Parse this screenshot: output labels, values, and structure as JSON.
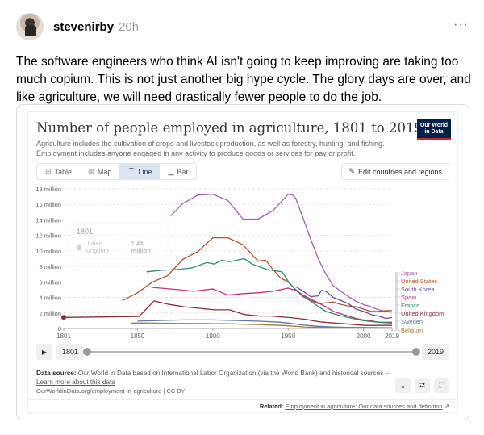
{
  "post": {
    "username": "stevenirby",
    "timestamp": "20h",
    "more_label": "···",
    "text": "The software engineers who think AI isn't going to keep improving are taking too much copium. This is not just another big hype cycle. The glory days are over, and like agriculture, we will need drastically fewer people to do the job."
  },
  "embed": {
    "title": "Number of people employed in agriculture, 1801 to 2019",
    "subtitle": "Agriculture includes the cultivation of crops and livestock production, as well as forestry, hunting, and fishing. Employment includes anyone engaged in any activity to produce goods or services for pay or profit.",
    "logo_line1": "Our World",
    "logo_line2": "in Data",
    "tabs": [
      {
        "label": "Table",
        "icon": "table-icon",
        "glyph": "⊞"
      },
      {
        "label": "Map",
        "icon": "globe-icon",
        "glyph": "◍"
      },
      {
        "label": "Line",
        "icon": "line-chart-icon",
        "glyph": "⌒",
        "active": true
      },
      {
        "label": "Bar",
        "icon": "bar-chart-icon",
        "glyph": "▁"
      }
    ],
    "edit_button": {
      "label": "Edit countries and regions",
      "glyph": "✎"
    },
    "tooltip": {
      "year": "1801",
      "country": "United Kingdom",
      "value": "1.43 million"
    },
    "timeline": {
      "play_glyph": "▶",
      "start_year": "1801",
      "end_year": "2019"
    },
    "source": {
      "label": "Data source:",
      "text": " Our World in Data based on International Labor Organization (via the World Bank) and historical sources – ",
      "learn_more": "Learn more about this data",
      "url": "OurWorldinData.org/employment-in-agriculture | CC BY"
    },
    "actions": [
      {
        "name": "download-button",
        "glyph": "⤓"
      },
      {
        "name": "share-button",
        "glyph": "⮂"
      },
      {
        "name": "fullscreen-button",
        "glyph": "⛶"
      }
    ],
    "related": {
      "label": "Related:",
      "link": "Employment in agriculture: Our data sources and definition",
      "glyph": "↗"
    }
  },
  "chart_data": {
    "type": "line",
    "title": "Number of people employed in agriculture, 1801 to 2019",
    "xlabel": "",
    "ylabel": "",
    "xlim": [
      1801,
      2019
    ],
    "ylim": [
      0,
      18000000
    ],
    "x_ticks": [
      1801,
      1850,
      1900,
      1950,
      2000,
      2019
    ],
    "y_ticks": [
      "0",
      "2 million",
      "4 million",
      "6 million",
      "8 million",
      "10 million",
      "12 million",
      "14 million",
      "16 million",
      "18 million"
    ],
    "grid": true,
    "legend_position": "right-inline",
    "series": [
      {
        "name": "Japan",
        "color": "#a25fb0",
        "points": [
          [
            1872,
            14.5
          ],
          [
            1880,
            16.1
          ],
          [
            1890,
            17.2
          ],
          [
            1900,
            17.3
          ],
          [
            1910,
            16.5
          ],
          [
            1920,
            14.1
          ],
          [
            1930,
            14.1
          ],
          [
            1940,
            15.2
          ],
          [
            1950,
            17.3
          ],
          [
            1953,
            17.2
          ],
          [
            1955,
            16.8
          ],
          [
            1960,
            14.2
          ],
          [
            1965,
            11.5
          ],
          [
            1970,
            9.0
          ],
          [
            1975,
            7.0
          ],
          [
            1980,
            5.5
          ],
          [
            1985,
            4.8
          ],
          [
            1990,
            4.1
          ],
          [
            1995,
            3.5
          ],
          [
            2000,
            3.1
          ],
          [
            2005,
            2.8
          ],
          [
            2010,
            2.4
          ],
          [
            2015,
            2.2
          ],
          [
            2019,
            2.1
          ]
        ]
      },
      {
        "name": "United States",
        "color": "#b2502d",
        "points": [
          [
            1840,
            3.6
          ],
          [
            1850,
            4.6
          ],
          [
            1860,
            6.0
          ],
          [
            1870,
            6.8
          ],
          [
            1880,
            8.9
          ],
          [
            1890,
            9.9
          ],
          [
            1900,
            11.7
          ],
          [
            1910,
            11.7
          ],
          [
            1920,
            10.8
          ],
          [
            1930,
            8.7
          ],
          [
            1935,
            8.8
          ],
          [
            1940,
            7.6
          ],
          [
            1945,
            6.5
          ],
          [
            1950,
            6.0
          ],
          [
            1955,
            5.0
          ],
          [
            1960,
            4.1
          ],
          [
            1965,
            3.6
          ],
          [
            1970,
            3.2
          ],
          [
            1975,
            3.3
          ],
          [
            1980,
            3.4
          ],
          [
            1985,
            3.1
          ],
          [
            1990,
            2.9
          ],
          [
            1995,
            2.8
          ],
          [
            2000,
            2.5
          ],
          [
            2005,
            2.2
          ],
          [
            2010,
            2.2
          ],
          [
            2015,
            2.3
          ],
          [
            2019,
            2.3
          ]
        ]
      },
      {
        "name": "South Korea",
        "color": "#6d4a9b",
        "points": [
          [
            1955,
            5.4
          ],
          [
            1960,
            4.8
          ],
          [
            1965,
            4.1
          ],
          [
            1970,
            4.2
          ],
          [
            1972,
            4.9
          ],
          [
            1975,
            4.8
          ],
          [
            1980,
            4.0
          ],
          [
            1985,
            3.6
          ],
          [
            1990,
            3.2
          ],
          [
            1995,
            2.5
          ],
          [
            2000,
            2.2
          ],
          [
            2005,
            1.8
          ],
          [
            2010,
            1.6
          ],
          [
            2015,
            1.3
          ],
          [
            2019,
            1.4
          ]
        ]
      },
      {
        "name": "Spain",
        "color": "#c2317a",
        "points": [
          [
            1860,
            5.3
          ],
          [
            1877,
            5.0
          ],
          [
            1887,
            4.8
          ],
          [
            1900,
            5.1
          ],
          [
            1910,
            4.3
          ],
          [
            1920,
            4.5
          ],
          [
            1930,
            4.6
          ],
          [
            1940,
            4.8
          ],
          [
            1950,
            5.2
          ],
          [
            1955,
            4.9
          ],
          [
            1960,
            4.3
          ],
          [
            1965,
            3.8
          ],
          [
            1970,
            3.3
          ],
          [
            1975,
            2.8
          ],
          [
            1980,
            2.2
          ],
          [
            1985,
            1.9
          ],
          [
            1990,
            1.6
          ],
          [
            1995,
            1.3
          ],
          [
            2000,
            1.1
          ],
          [
            2005,
            1.0
          ],
          [
            2010,
            0.8
          ],
          [
            2015,
            0.8
          ],
          [
            2019,
            0.8
          ]
        ]
      },
      {
        "name": "France",
        "color": "#2e8c6a",
        "points": [
          [
            1856,
            7.3
          ],
          [
            1866,
            7.5
          ],
          [
            1876,
            7.6
          ],
          [
            1886,
            7.8
          ],
          [
            1896,
            8.5
          ],
          [
            1901,
            8.3
          ],
          [
            1906,
            8.8
          ],
          [
            1911,
            8.6
          ],
          [
            1921,
            9.0
          ],
          [
            1926,
            8.3
          ],
          [
            1936,
            7.6
          ],
          [
            1946,
            7.3
          ],
          [
            1950,
            6.1
          ],
          [
            1954,
            5.2
          ],
          [
            1962,
            3.9
          ],
          [
            1968,
            3.1
          ],
          [
            1975,
            2.2
          ],
          [
            1982,
            1.8
          ],
          [
            1990,
            1.4
          ],
          [
            2000,
            1.0
          ],
          [
            2005,
            0.9
          ],
          [
            2010,
            0.8
          ],
          [
            2019,
            0.7
          ]
        ]
      },
      {
        "name": "United Kingdom",
        "color": "#883039",
        "points": [
          [
            1801,
            1.43
          ],
          [
            1851,
            1.55
          ],
          [
            1861,
            3.55
          ],
          [
            1871,
            3.1
          ],
          [
            1881,
            2.8
          ],
          [
            1891,
            2.6
          ],
          [
            1901,
            2.4
          ],
          [
            1911,
            2.4
          ],
          [
            1921,
            1.8
          ],
          [
            1931,
            1.6
          ],
          [
            1939,
            1.6
          ],
          [
            1951,
            1.4
          ],
          [
            1961,
            1.2
          ],
          [
            1971,
            0.85
          ],
          [
            1981,
            0.7
          ],
          [
            1991,
            0.55
          ],
          [
            2001,
            0.4
          ],
          [
            2011,
            0.4
          ],
          [
            2019,
            0.4
          ]
        ]
      },
      {
        "name": "Sweden",
        "color": "#5f78a6",
        "points": [
          [
            1850,
            0.95
          ],
          [
            1860,
            1.0
          ],
          [
            1870,
            1.05
          ],
          [
            1880,
            1.1
          ],
          [
            1900,
            1.1
          ],
          [
            1910,
            1.05
          ],
          [
            1930,
            0.95
          ],
          [
            1945,
            0.8
          ],
          [
            1950,
            0.7
          ],
          [
            1960,
            0.45
          ],
          [
            1970,
            0.28
          ],
          [
            1980,
            0.2
          ],
          [
            1990,
            0.15
          ],
          [
            2000,
            0.12
          ],
          [
            2019,
            0.09
          ]
        ]
      },
      {
        "name": "Belgium",
        "color": "#a27a46",
        "points": [
          [
            1846,
            0.7
          ],
          [
            1856,
            0.7
          ],
          [
            1866,
            0.68
          ],
          [
            1880,
            0.65
          ],
          [
            1900,
            0.62
          ],
          [
            1910,
            0.6
          ],
          [
            1930,
            0.5
          ],
          [
            1947,
            0.38
          ],
          [
            1961,
            0.2
          ],
          [
            1970,
            0.15
          ],
          [
            1980,
            0.12
          ],
          [
            1990,
            0.1
          ],
          [
            2000,
            0.08
          ],
          [
            2019,
            0.06
          ]
        ]
      }
    ]
  }
}
